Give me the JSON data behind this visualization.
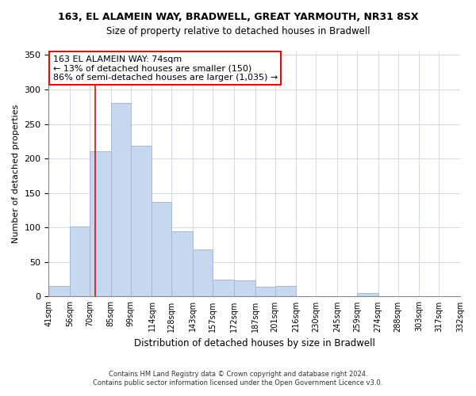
{
  "title": "163, EL ALAMEIN WAY, BRADWELL, GREAT YARMOUTH, NR31 8SX",
  "subtitle": "Size of property relative to detached houses in Bradwell",
  "xlabel": "Distribution of detached houses by size in Bradwell",
  "ylabel": "Number of detached properties",
  "bar_color": "#c5d8f0",
  "bar_edge_color": "#a0bad8",
  "bins": [
    41,
    56,
    70,
    85,
    99,
    114,
    128,
    143,
    157,
    172,
    187,
    201,
    216,
    230,
    245,
    259,
    274,
    288,
    303,
    317,
    332
  ],
  "values": [
    15,
    102,
    211,
    280,
    218,
    137,
    95,
    68,
    25,
    23,
    14,
    15,
    0,
    0,
    0,
    5,
    0,
    0,
    0,
    0
  ],
  "tick_labels": [
    "41sqm",
    "56sqm",
    "70sqm",
    "85sqm",
    "99sqm",
    "114sqm",
    "128sqm",
    "143sqm",
    "157sqm",
    "172sqm",
    "187sqm",
    "201sqm",
    "216sqm",
    "230sqm",
    "245sqm",
    "259sqm",
    "274sqm",
    "288sqm",
    "303sqm",
    "317sqm",
    "332sqm"
  ],
  "redline_x": 74,
  "ann_line1": "163 EL ALAMEIN WAY: 74sqm",
  "ann_line2": "← 13% of detached houses are smaller (150)",
  "ann_line3": "86% of semi-detached houses are larger (1,035) →",
  "footer_line1": "Contains HM Land Registry data © Crown copyright and database right 2024.",
  "footer_line2": "Contains public sector information licensed under the Open Government Licence v3.0.",
  "ylim": [
    0,
    355
  ],
  "yticks": [
    0,
    50,
    100,
    150,
    200,
    250,
    300,
    350
  ],
  "fig_width": 6.0,
  "fig_height": 5.0,
  "dpi": 100
}
